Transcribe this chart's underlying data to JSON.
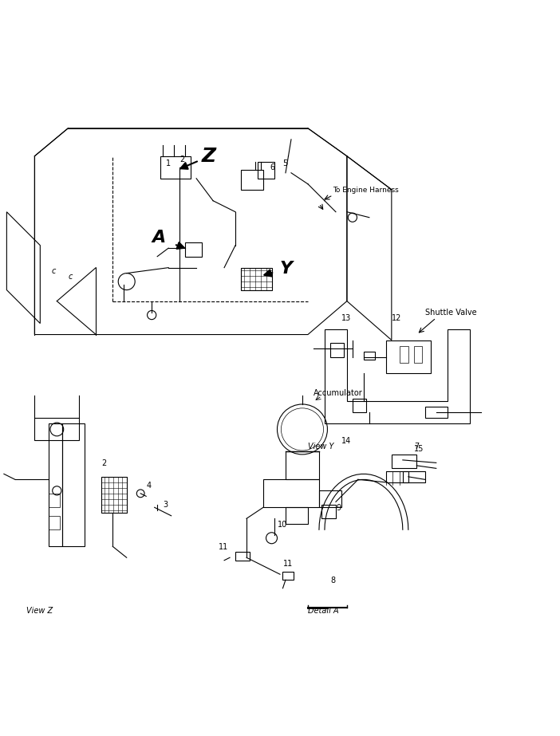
{
  "title": "",
  "bg_color": "#ffffff",
  "line_color": "#000000",
  "labels": {
    "view_z": "View Z",
    "detail_a": "Detail A",
    "to_engine_harness": "To Engine Harness",
    "shuttle_valve": "Shuttle Valve",
    "view_y": "View Y",
    "accumulator": "Accumulator",
    "Z": "Z",
    "A": "A",
    "Y": "Y"
  },
  "figsize": [
    7.02,
    9.23
  ],
  "dpi": 100
}
